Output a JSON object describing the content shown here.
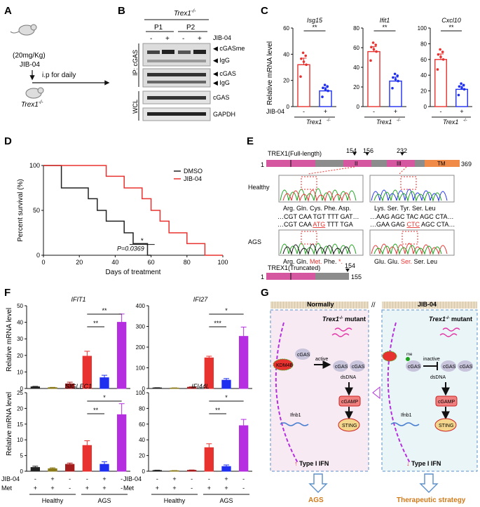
{
  "panels": {
    "A": {
      "label": "A",
      "dose": "(20mg/Kg)",
      "drug": "JIB-04",
      "route": "i.p for daily",
      "mouse": "Trex1",
      "sup": "-/-"
    },
    "B": {
      "label": "B",
      "genotype": "Trex1",
      "sup": "-/-",
      "groups": [
        "P1",
        "P2"
      ],
      "treatment_label": "JIB-04",
      "signs": [
        "-",
        "+",
        "-",
        "+"
      ],
      "ip_label": "IP: cGAS",
      "wcl_label": "WCL",
      "bands": [
        "cGASme",
        "IgG",
        "cGAS",
        "IgG",
        "cGAS",
        "GAPDH"
      ]
    },
    "C": {
      "label": "C",
      "ylabel": "Relative mRNA level",
      "genotype": "Trex1",
      "sup": "-/-",
      "treat": "JIB-04",
      "signs": [
        "-",
        "+"
      ]
    },
    "D": {
      "label": "D",
      "legend": [
        "DMSO",
        "JIB-04"
      ]
    },
    "E": {
      "label": "E",
      "full": "TREX1(Full-length)",
      "truncated": "TREX1(Truncated)",
      "pos154": "154",
      "pos156": "156",
      "pos232": "232",
      "start": "1",
      "end_full": "369",
      "end_trunc": "155",
      "dom1": "I",
      "dom2": "II",
      "dom3": "III",
      "domTM": "TM",
      "healthy": "Healthy",
      "ags": "AGS",
      "h_aa1": "Arg. Gln. Cys. Phe. Asp.",
      "h_aa2": "Lys. Ser. Tyr. Ser. Leu",
      "h_seq1": "…CGT CAA TGT TTT GAT…",
      "h_seq2": "…AAG AGC TAC AGC CTA…",
      "a_seq1a": "…CGT CAA ",
      "a_seq1b": "ATG",
      "a_seq1c": " TTT TGA",
      "a_seq2a": "…GAA GAG ",
      "a_seq2b": "CTC",
      "a_seq2c": " AGC CTA…",
      "a_aa1a": "Arg. Gln. ",
      "a_aa1b": "Met.",
      "a_aa1c": " Phe. ",
      "a_aa1d": "*.",
      "a_aa2a": "Glu. Glu. ",
      "a_aa2b": "Ser.",
      "a_aa2c": " Ser. Leu"
    },
    "F": {
      "label": "F",
      "ylabel": "Relative mRNA level",
      "jib": "JIB-04",
      "met": "Met",
      "jib_signs": [
        "-",
        "+",
        "-",
        "-",
        "+",
        "-"
      ],
      "met_signs": [
        "+",
        "+",
        "-",
        "+",
        "+",
        "-"
      ],
      "groups": [
        "Healthy",
        "AGS"
      ]
    },
    "G": {
      "label": "G",
      "left_title": "Normally",
      "right_title": "JIB-04",
      "mutant": "Trex1",
      "mutant_sup": "-/-",
      "mutant_suffix": " mutant",
      "cgas": "cGAS",
      "kdm4b": "KDM4B",
      "active": "active",
      "inactive": "inactive",
      "dsdna": "dsDNA",
      "cgamp": "cGAMP",
      "sting": "STING",
      "ifnb1": "Ifnb1",
      "ifn": "Type I IFN",
      "me": "me",
      "left_out": "AGS",
      "right_out": "Therapeutic strategy",
      "sep": "//"
    }
  },
  "colors": {
    "red": "#e8322f",
    "blue": "#1f2ff0",
    "dkred": "#a51c1c",
    "olive": "#8a7a1a",
    "purple": "#b52fe0",
    "pink": "#d4579f",
    "grey": "#8c8c8c"
  },
  "chart_data": [
    {
      "type": "bar",
      "id": "C-Isg15",
      "title": "Isg15",
      "categories": [
        "-",
        "+"
      ],
      "values": [
        32,
        12
      ],
      "errors": [
        5,
        2.5
      ],
      "ylim": [
        0,
        60
      ],
      "yticks": [
        0,
        20,
        40,
        60
      ],
      "significance": "**"
    },
    {
      "type": "bar",
      "id": "C-Ifit1",
      "title": "Ifit1",
      "categories": [
        "-",
        "+"
      ],
      "values": [
        56,
        26
      ],
      "errors": [
        5,
        4
      ],
      "ylim": [
        0,
        80
      ],
      "yticks": [
        0,
        20,
        40,
        60,
        80
      ],
      "significance": "**"
    },
    {
      "type": "bar",
      "id": "C-Cxcl10",
      "title": "Cxcl10",
      "categories": [
        "-",
        "+"
      ],
      "values": [
        60,
        22
      ],
      "errors": [
        7,
        4
      ],
      "ylim": [
        0,
        100
      ],
      "yticks": [
        0,
        20,
        40,
        60,
        80,
        100
      ],
      "significance": "**"
    },
    {
      "type": "line",
      "id": "D-survival",
      "xlabel": "Days of treatment",
      "ylabel": "Percent survival (%)",
      "xlim": [
        0,
        100
      ],
      "ylim": [
        0,
        100
      ],
      "xticks": [
        0,
        20,
        40,
        60,
        80,
        100
      ],
      "yticks": [
        0,
        50,
        100
      ],
      "pvalue": "P=0.0369",
      "significance": "*",
      "series": [
        {
          "name": "DMSO",
          "steps": [
            [
              0,
              100
            ],
            [
              10,
              100
            ],
            [
              10,
              75
            ],
            [
              25,
              75
            ],
            [
              25,
              63
            ],
            [
              30,
              63
            ],
            [
              30,
              50
            ],
            [
              35,
              50
            ],
            [
              35,
              38
            ],
            [
              45,
              38
            ],
            [
              45,
              25
            ],
            [
              50,
              25
            ],
            [
              50,
              13
            ],
            [
              58,
              13
            ],
            [
              58,
              0
            ],
            [
              60,
              0
            ]
          ]
        },
        {
          "name": "JIB-04",
          "steps": [
            [
              0,
              100
            ],
            [
              35,
              100
            ],
            [
              35,
              88
            ],
            [
              45,
              88
            ],
            [
              45,
              75
            ],
            [
              55,
              75
            ],
            [
              55,
              63
            ],
            [
              60,
              63
            ],
            [
              60,
              50
            ],
            [
              65,
              50
            ],
            [
              65,
              38
            ],
            [
              70,
              38
            ],
            [
              70,
              25
            ],
            [
              80,
              25
            ],
            [
              80,
              13
            ],
            [
              90,
              13
            ],
            [
              90,
              0
            ],
            [
              100,
              0
            ]
          ]
        }
      ]
    },
    {
      "type": "bar",
      "id": "F-IFIT1",
      "title": "IFIT1",
      "values": [
        1,
        0.5,
        2.8,
        19.5,
        6.5,
        40
      ],
      "errors": [
        0.3,
        0.2,
        1,
        3,
        1.5,
        5
      ],
      "ylim": [
        0,
        50
      ],
      "yticks": [
        0,
        10,
        20,
        30,
        40,
        50
      ],
      "significance": [
        [
          "**",
          3,
          5
        ],
        [
          "**",
          3,
          4
        ]
      ]
    },
    {
      "type": "bar",
      "id": "F-IFI27",
      "title": "IFI27",
      "values": [
        3,
        2,
        6,
        148,
        40,
        252
      ],
      "errors": [
        1,
        1,
        2,
        8,
        8,
        45
      ],
      "ylim": [
        0,
        400
      ],
      "yticks": [
        0,
        100,
        200,
        300,
        400
      ],
      "significance": [
        [
          "*",
          3,
          5
        ],
        [
          "***",
          3,
          4
        ]
      ]
    },
    {
      "type": "bar",
      "id": "F-SIGLEC1",
      "title": "SIGLEC1",
      "values": [
        1.2,
        0.8,
        2.2,
        8.2,
        2.2,
        18
      ],
      "errors": [
        0.4,
        0.3,
        0.4,
        1.5,
        0.8,
        3.5
      ],
      "ylim": [
        0,
        25
      ],
      "yticks": [
        0,
        5,
        10,
        15,
        20,
        25
      ],
      "significance": [
        [
          "*",
          3,
          5
        ],
        [
          "**",
          3,
          4
        ]
      ]
    },
    {
      "type": "bar",
      "id": "F-IFI44L",
      "title": "IFI44L",
      "values": [
        1,
        0.6,
        1.2,
        30,
        6,
        58
      ],
      "errors": [
        0.4,
        0.3,
        0.4,
        5,
        2,
        8
      ],
      "ylim": [
        0,
        100
      ],
      "yticks": [
        0,
        20,
        40,
        60,
        80,
        100
      ],
      "significance": [
        [
          "*",
          3,
          5
        ],
        [
          "**",
          3,
          4
        ]
      ]
    }
  ]
}
